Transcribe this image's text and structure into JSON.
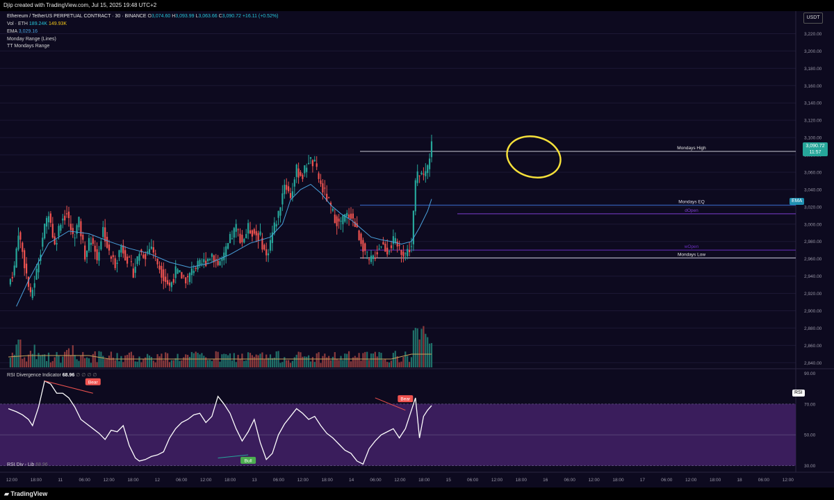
{
  "header": {
    "credit": "Djip created with TradingView.com, Jul 15, 2025 19:48 UTC+2"
  },
  "legend": {
    "symbol": "Ethereum / TetherUS PERPETUAL CONTRACT · 30 · BINANCE",
    "o_label": "O",
    "o": "3,074.60",
    "h_label": "H",
    "h": "3,093.99",
    "l_label": "L",
    "l": "3,063.66",
    "c_label": "C",
    "c": "3,090.72",
    "change": "+16.11 (+0.52%)",
    "vol_label": "Vol · ETH",
    "vol_a": "189.24K",
    "vol_b": "149.93K",
    "ema_label": "EMA",
    "ema_value": "3,029.16",
    "indicator_1": "Monday Range (Lines)",
    "indicator_2": "TT Mondays Range"
  },
  "currency_button": "USDT",
  "price_badge": {
    "price": "3,090.72",
    "countdown": "11:57"
  },
  "ema_tag": "EMA",
  "rsi_tag": "RSI",
  "rsi_legend": {
    "name": "RSI Divergence Indicator",
    "value": "68.96",
    "extras": "∅ ∅ ∅ ∅"
  },
  "rsi_lib": {
    "name": "RSI Div - Lib",
    "value": "68.96"
  },
  "footer_logo": "TradingView",
  "colors": {
    "bull": "#26a69a",
    "bear": "#ef5350",
    "ema": "#4aa3df",
    "circle": "#f5e03a",
    "rsi_band": "#3a1d5c",
    "rsi_line": "#ffffff",
    "bg": "#0d0a1f"
  },
  "chart_data": {
    "type": "candlestick",
    "price_axis": {
      "ticks": [
        "3,220.00",
        "3,200.00",
        "3,180.00",
        "3,160.00",
        "3,140.00",
        "3,120.00",
        "3,100.00",
        "3,080.00",
        "3,060.00",
        "3,040.00",
        "3,020.00",
        "3,000.00",
        "2,980.00",
        "2,960.00",
        "2,940.00",
        "2,920.00",
        "2,900.00",
        "2,880.00",
        "2,860.00",
        "2,840.00"
      ],
      "range": [
        2833,
        3230
      ]
    },
    "time_axis": {
      "ticks": [
        "12:00",
        "18:00",
        "11",
        "06:00",
        "12:00",
        "18:00",
        "12",
        "06:00",
        "12:00",
        "18:00",
        "13",
        "06:00",
        "12:00",
        "18:00",
        "14",
        "06:00",
        "12:00",
        "18:00",
        "15",
        "06:00",
        "12:00",
        "18:00",
        "16",
        "06:00",
        "12:00",
        "18:00",
        "17",
        "06:00",
        "12:00",
        "18:00",
        "18",
        "06:00",
        "12:00"
      ]
    },
    "close_path": [
      [
        0,
        2930
      ],
      [
        3,
        2950
      ],
      [
        5,
        2992
      ],
      [
        8,
        2955
      ],
      [
        11,
        2915
      ],
      [
        14,
        2945
      ],
      [
        17,
        2985
      ],
      [
        20,
        3015
      ],
      [
        23,
        2975
      ],
      [
        26,
        3005
      ],
      [
        29,
        3012
      ],
      [
        32,
        2985
      ],
      [
        35,
        3002
      ],
      [
        38,
        2965
      ],
      [
        41,
        2985
      ],
      [
        44,
        2960
      ],
      [
        47,
        2995
      ],
      [
        50,
        2965
      ],
      [
        53,
        2955
      ],
      [
        56,
        2975
      ],
      [
        59,
        2960
      ],
      [
        62,
        2945
      ],
      [
        65,
        2968
      ],
      [
        68,
        2965
      ],
      [
        71,
        2975
      ],
      [
        74,
        2955
      ],
      [
        77,
        2940
      ],
      [
        80,
        2928
      ],
      [
        83,
        2945
      ],
      [
        86,
        2940
      ],
      [
        89,
        2936
      ],
      [
        92,
        2950
      ],
      [
        95,
        2952
      ],
      [
        98,
        2958
      ],
      [
        101,
        2966
      ],
      [
        104,
        2954
      ],
      [
        107,
        2962
      ],
      [
        110,
        2982
      ],
      [
        113,
        2996
      ],
      [
        116,
        2980
      ],
      [
        119,
        2995
      ],
      [
        122,
        2990
      ],
      [
        125,
        2985
      ],
      [
        128,
        2962
      ],
      [
        131,
        2990
      ],
      [
        134,
        3012
      ],
      [
        137,
        3048
      ],
      [
        140,
        3032
      ],
      [
        143,
        3062
      ],
      [
        146,
        3056
      ],
      [
        149,
        3075
      ],
      [
        152,
        3068
      ],
      [
        155,
        3045
      ],
      [
        158,
        3030
      ],
      [
        161,
        3012
      ],
      [
        164,
        3000
      ],
      [
        167,
        3008
      ],
      [
        170,
        3012
      ],
      [
        173,
        2992
      ],
      [
        176,
        2975
      ],
      [
        179,
        2955
      ],
      [
        182,
        2965
      ],
      [
        185,
        2978
      ],
      [
        188,
        2970
      ],
      [
        191,
        2980
      ],
      [
        194,
        2972
      ],
      [
        197,
        2966
      ],
      [
        200,
        2975
      ],
      [
        202,
        3050
      ],
      [
        204,
        3060
      ],
      [
        206,
        3055
      ],
      [
        208,
        3066
      ],
      [
        210,
        3091
      ]
    ],
    "ema_path": [
      [
        4,
        2905
      ],
      [
        10,
        2935
      ],
      [
        20,
        2978
      ],
      [
        30,
        2992
      ],
      [
        40,
        2989
      ],
      [
        50,
        2980
      ],
      [
        60,
        2972
      ],
      [
        70,
        2966
      ],
      [
        80,
        2956
      ],
      [
        90,
        2950
      ],
      [
        100,
        2955
      ],
      [
        110,
        2965
      ],
      [
        120,
        2978
      ],
      [
        130,
        2985
      ],
      [
        136,
        3000
      ],
      [
        140,
        3028
      ],
      [
        145,
        3040
      ],
      [
        150,
        3046
      ],
      [
        155,
        3036
      ],
      [
        160,
        3022
      ],
      [
        165,
        3012
      ],
      [
        170,
        3005
      ],
      [
        175,
        2995
      ],
      [
        180,
        2985
      ],
      [
        185,
        2982
      ],
      [
        190,
        2980
      ],
      [
        195,
        2977
      ],
      [
        200,
        2980
      ],
      [
        204,
        2996
      ],
      [
        208,
        3015
      ],
      [
        210,
        3029
      ]
    ],
    "levels": [
      {
        "name": "Mondays High",
        "price": 3084
      },
      {
        "name": "Mondays EQ",
        "price": 3022
      },
      {
        "name": "dOpen",
        "price": 3012
      },
      {
        "name": "wOpen",
        "price": 2970
      },
      {
        "name": "Mondays Low",
        "price": 2961
      }
    ],
    "rsi": {
      "axis_ticks": [
        "90.00",
        "70.00",
        "50.00",
        "30.00"
      ],
      "band": [
        30,
        70
      ],
      "range": [
        28,
        92
      ],
      "path": [
        [
          0,
          67
        ],
        [
          4,
          65
        ],
        [
          7,
          63
        ],
        [
          10,
          60
        ],
        [
          12,
          56
        ],
        [
          15,
          68
        ],
        [
          18,
          85
        ],
        [
          21,
          83
        ],
        [
          24,
          77
        ],
        [
          27,
          77
        ],
        [
          30,
          74
        ],
        [
          33,
          68
        ],
        [
          36,
          60
        ],
        [
          39,
          57
        ],
        [
          42,
          54
        ],
        [
          45,
          51
        ],
        [
          48,
          47
        ],
        [
          51,
          53
        ],
        [
          54,
          52
        ],
        [
          57,
          56
        ],
        [
          60,
          43
        ],
        [
          63,
          35
        ],
        [
          65,
          33
        ],
        [
          68,
          34
        ],
        [
          71,
          36
        ],
        [
          74,
          37
        ],
        [
          77,
          39
        ],
        [
          80,
          48
        ],
        [
          83,
          54
        ],
        [
          86,
          58
        ],
        [
          89,
          60
        ],
        [
          92,
          63
        ],
        [
          95,
          64
        ],
        [
          98,
          58
        ],
        [
          101,
          62
        ],
        [
          104,
          75
        ],
        [
          107,
          70
        ],
        [
          110,
          64
        ],
        [
          113,
          54
        ],
        [
          116,
          46
        ],
        [
          119,
          52
        ],
        [
          122,
          60
        ],
        [
          125,
          45
        ],
        [
          128,
          34
        ],
        [
          131,
          38
        ],
        [
          134,
          50
        ],
        [
          137,
          57
        ],
        [
          140,
          62
        ],
        [
          143,
          67
        ],
        [
          146,
          64
        ],
        [
          149,
          60
        ],
        [
          152,
          62
        ],
        [
          155,
          56
        ],
        [
          158,
          51
        ],
        [
          161,
          48
        ],
        [
          164,
          44
        ],
        [
          167,
          40
        ],
        [
          170,
          38
        ],
        [
          173,
          33
        ],
        [
          176,
          31
        ],
        [
          179,
          41
        ],
        [
          182,
          46
        ],
        [
          185,
          50
        ],
        [
          188,
          52
        ],
        [
          191,
          54
        ],
        [
          194,
          48
        ],
        [
          197,
          54
        ],
        [
          200,
          66
        ],
        [
          202,
          74
        ],
        [
          204,
          48
        ],
        [
          206,
          62
        ],
        [
          208,
          66
        ],
        [
          210,
          69
        ]
      ],
      "labels": [
        {
          "text": "Bear",
          "kind": "bear"
        },
        {
          "text": "Bull",
          "kind": "bull"
        },
        {
          "text": "Bear",
          "kind": "bear"
        }
      ]
    }
  }
}
